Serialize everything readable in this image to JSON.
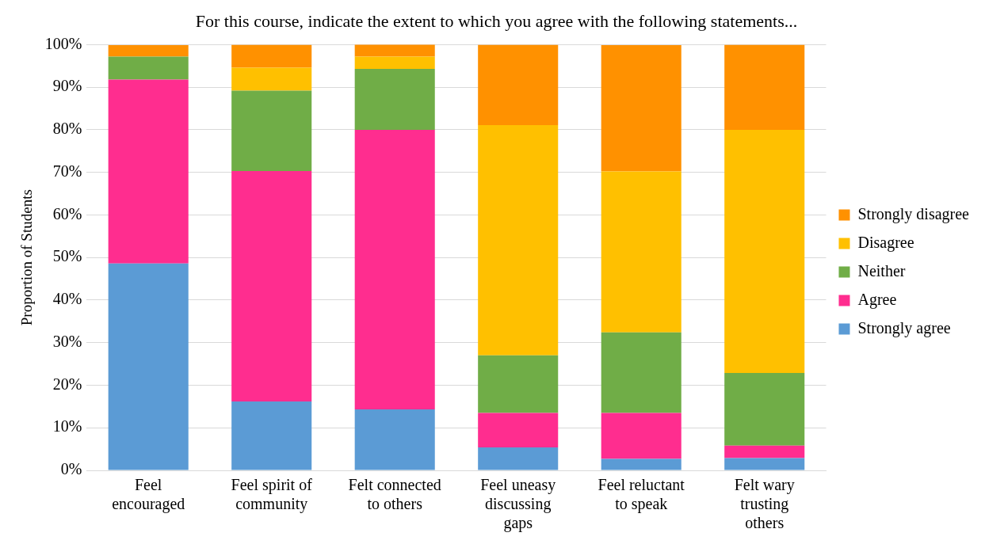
{
  "chart_data": {
    "type": "bar",
    "title": "For this course, indicate the extent to which you agree with the following statements...",
    "ylabel": "Proportion of Students",
    "categories": [
      "Feel encouraged",
      "Feel spirit of community",
      "Felt connected to others",
      "Feel uneasy discussing gaps",
      "Feel reluctant to speak",
      "Felt wary trusting others"
    ],
    "stacked": true,
    "series": [
      {
        "name": "Strongly agree",
        "color": "#5b9bd5",
        "values": [
          48.6,
          16.2,
          14.3,
          5.4,
          2.7,
          2.9
        ]
      },
      {
        "name": "Agree",
        "color": "#ff2d8f",
        "values": [
          43.2,
          54.1,
          65.7,
          8.1,
          10.8,
          2.9
        ]
      },
      {
        "name": "Neither",
        "color": "#70ad47",
        "values": [
          5.4,
          18.9,
          14.3,
          13.5,
          18.9,
          17.1
        ]
      },
      {
        "name": "Disagree",
        "color": "#ffc000",
        "values": [
          0,
          5.4,
          2.9,
          54.1,
          37.8,
          57.1
        ]
      },
      {
        "name": "Strongly disagree",
        "color": "#ff9100",
        "values": [
          2.7,
          5.4,
          2.9,
          18.9,
          29.7,
          20
        ]
      }
    ],
    "ylim": [
      0,
      100
    ],
    "yticks": [
      {
        "value": 0,
        "label": "0%"
      },
      {
        "value": 10,
        "label": "10%"
      },
      {
        "value": 20,
        "label": "20%"
      },
      {
        "value": 30,
        "label": "30%"
      },
      {
        "value": 40,
        "label": "40%"
      },
      {
        "value": 50,
        "label": "50%"
      },
      {
        "value": 60,
        "label": "60%"
      },
      {
        "value": 70,
        "label": "70%"
      },
      {
        "value": 80,
        "label": "80%"
      },
      {
        "value": 90,
        "label": "90%"
      },
      {
        "value": 100,
        "label": "100%"
      }
    ],
    "grid": "y",
    "legend": "right"
  }
}
